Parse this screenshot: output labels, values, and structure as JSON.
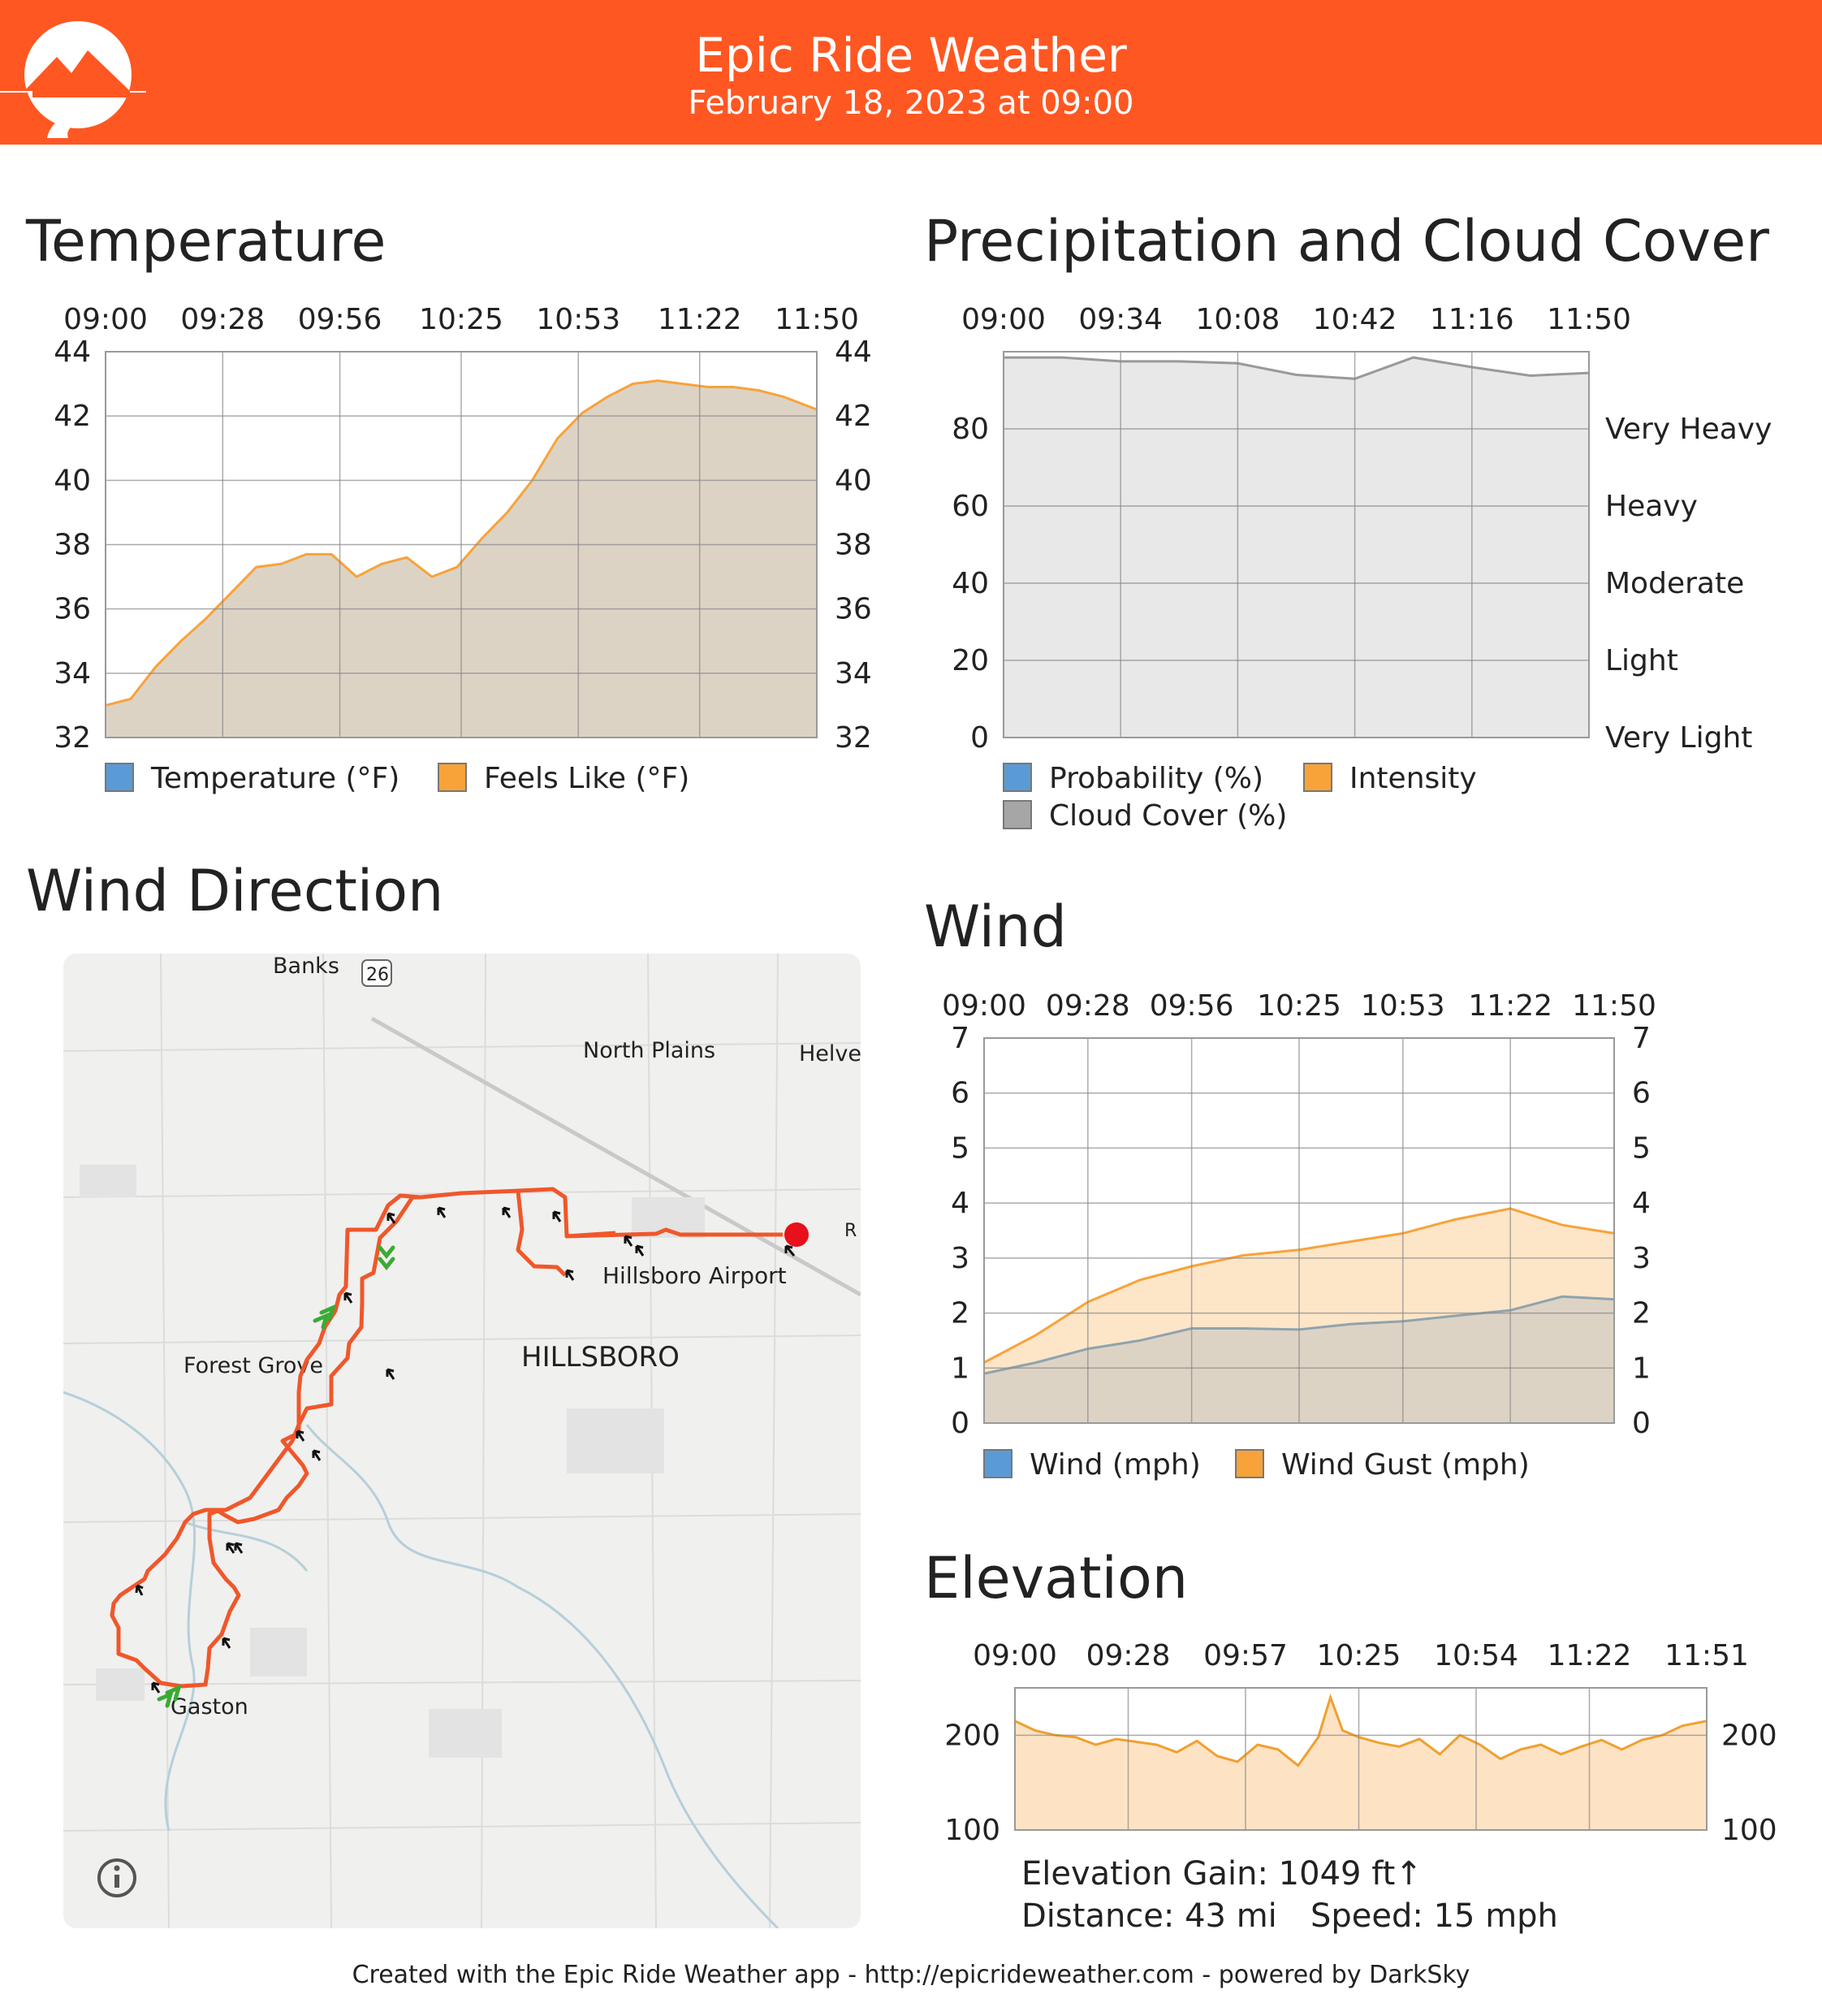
{
  "header": {
    "title": "Epic Ride Weather",
    "date": "February 18, 2023 at 09:00",
    "background_color": "#ff5722"
  },
  "sections": {
    "temperature": "Temperature",
    "precipitation": "Precipitation and Cloud Cover",
    "wind_direction": "Wind Direction",
    "wind": "Wind",
    "elevation": "Elevation"
  },
  "chart_data": [
    {
      "id": "temperature",
      "type": "area",
      "x_ticks": [
        "09:00",
        "09:28",
        "09:56",
        "10:25",
        "10:53",
        "11:22",
        "11:50"
      ],
      "ylim": [
        32,
        44
      ],
      "y_ticks": [
        32,
        34,
        36,
        38,
        40,
        42,
        44
      ],
      "grid": true,
      "legend_position": "bottom",
      "legend": [
        {
          "label": "Temperature (°F)",
          "color": "#5b9bd5"
        },
        {
          "label": "Feels Like (°F)",
          "color": "#f7a33a"
        }
      ],
      "series": [
        {
          "name": "Feels Like (°F)",
          "x": [
            "09:00",
            "09:06",
            "09:12",
            "09:18",
            "09:24",
            "09:30",
            "09:36",
            "09:42",
            "09:48",
            "09:54",
            "10:00",
            "10:06",
            "10:12",
            "10:18",
            "10:24",
            "10:30",
            "10:36",
            "10:42",
            "10:48",
            "10:54",
            "11:00",
            "11:06",
            "11:12",
            "11:18",
            "11:24",
            "11:30",
            "11:36",
            "11:42",
            "11:50"
          ],
          "values": [
            33.0,
            33.2,
            34.2,
            35.0,
            35.7,
            36.5,
            37.3,
            37.4,
            37.7,
            37.7,
            37.0,
            37.4,
            37.6,
            37.0,
            37.3,
            38.2,
            39.0,
            40.0,
            41.3,
            42.1,
            42.6,
            43.0,
            43.1,
            43.0,
            42.9,
            42.9,
            42.8,
            42.6,
            42.2
          ],
          "color": "#f7a33a",
          "fill": "#ddd3c5"
        }
      ]
    },
    {
      "id": "precipitation",
      "type": "area",
      "x_ticks": [
        "09:00",
        "09:34",
        "10:08",
        "10:42",
        "11:16",
        "11:50"
      ],
      "ylim": [
        0,
        100
      ],
      "y_ticks": [
        0,
        20,
        40,
        60,
        80
      ],
      "right_labels": [
        "Very Light",
        "Light",
        "Moderate",
        "Heavy",
        "Very Heavy"
      ],
      "grid": true,
      "legend_position": "bottom",
      "legend": [
        {
          "label": "Probability (%)",
          "color": "#5b9bd5"
        },
        {
          "label": "Intensity",
          "color": "#f7a33a"
        },
        {
          "label": "Cloud Cover (%)",
          "color": "#a6a6a6"
        }
      ],
      "series": [
        {
          "name": "Cloud Cover (%)",
          "x": [
            "09:00",
            "09:17",
            "09:34",
            "09:51",
            "10:08",
            "10:25",
            "10:42",
            "10:59",
            "11:16",
            "11:33",
            "11:50"
          ],
          "values": [
            98.5,
            98.5,
            97.5,
            97.5,
            97.0,
            94.0,
            93.0,
            98.5,
            96.0,
            93.8,
            94.5
          ],
          "color": "#999999",
          "fill": "#e8e8e8"
        }
      ]
    },
    {
      "id": "wind",
      "type": "area",
      "x_ticks": [
        "09:00",
        "09:28",
        "09:56",
        "10:25",
        "10:53",
        "11:22",
        "11:50"
      ],
      "ylim": [
        0,
        7
      ],
      "y_ticks": [
        0,
        1,
        2,
        3,
        4,
        5,
        6,
        7
      ],
      "grid": true,
      "legend_position": "bottom",
      "legend": [
        {
          "label": "Wind (mph)",
          "color": "#5b9bd5"
        },
        {
          "label": "Wind Gust (mph)",
          "color": "#f7a33a"
        }
      ],
      "series": [
        {
          "name": "Wind Gust (mph)",
          "x": [
            "09:00",
            "09:14",
            "09:28",
            "09:42",
            "09:56",
            "10:10",
            "10:25",
            "10:39",
            "10:53",
            "11:07",
            "11:22",
            "11:36",
            "11:50"
          ],
          "values": [
            1.1,
            1.6,
            2.2,
            2.6,
            2.85,
            3.05,
            3.15,
            3.3,
            3.45,
            3.7,
            3.9,
            3.6,
            3.45
          ],
          "color": "#f7a33a",
          "fill": "#fde5c8"
        },
        {
          "name": "Wind (mph)",
          "x": [
            "09:00",
            "09:14",
            "09:28",
            "09:42",
            "09:56",
            "10:10",
            "10:25",
            "10:39",
            "10:53",
            "11:07",
            "11:22",
            "11:36",
            "11:50"
          ],
          "values": [
            0.9,
            1.1,
            1.35,
            1.5,
            1.72,
            1.72,
            1.7,
            1.8,
            1.85,
            1.95,
            2.05,
            2.3,
            2.25
          ],
          "color": "#8fa3ad",
          "fill": "#ddd3c5"
        }
      ]
    },
    {
      "id": "elevation",
      "type": "area",
      "x_ticks": [
        "09:00",
        "09:28",
        "09:57",
        "10:25",
        "10:54",
        "11:22",
        "11:51"
      ],
      "ylim": [
        100,
        250
      ],
      "y_ticks": [
        100,
        200
      ],
      "grid": true,
      "series": [
        {
          "name": "",
          "x": [
            "09:00",
            "09:05",
            "09:10",
            "09:15",
            "09:20",
            "09:25",
            "09:30",
            "09:35",
            "09:40",
            "09:45",
            "09:50",
            "09:55",
            "10:00",
            "10:05",
            "10:10",
            "10:15",
            "10:18",
            "10:21",
            "10:25",
            "10:30",
            "10:35",
            "10:40",
            "10:45",
            "10:50",
            "10:55",
            "11:00",
            "11:05",
            "11:10",
            "11:15",
            "11:20",
            "11:25",
            "11:30",
            "11:35",
            "11:40",
            "11:45",
            "11:51"
          ],
          "values": [
            215,
            205,
            200,
            198,
            190,
            196,
            193,
            190,
            182,
            194,
            178,
            172,
            190,
            185,
            168,
            198,
            240,
            205,
            198,
            192,
            188,
            196,
            180,
            200,
            190,
            175,
            185,
            190,
            180,
            188,
            195,
            185,
            195,
            200,
            210,
            215
          ],
          "color": "#f0a030",
          "fill": "#fde3c4"
        }
      ]
    }
  ],
  "stats": {
    "elevation_gain": "Elevation Gain: 1049 ft↑",
    "distance": "Distance: 43 mi",
    "speed": "Speed: 15 mph"
  },
  "map": {
    "labels": {
      "banks": "Banks",
      "route_shield": "26",
      "north_plains": "North Plains",
      "helvetia": "Helve",
      "r": "R",
      "hillsboro_airport": "Hillsboro Airport",
      "forest_grove": "Forest Grove",
      "hillsboro": "HILLSBORO",
      "gaston": "Gaston"
    },
    "route_color": "#f0572a",
    "info_icon": "info-icon"
  },
  "footer": "Created with the Epic Ride Weather app - http://epicrideweather.com - powered by DarkSky"
}
